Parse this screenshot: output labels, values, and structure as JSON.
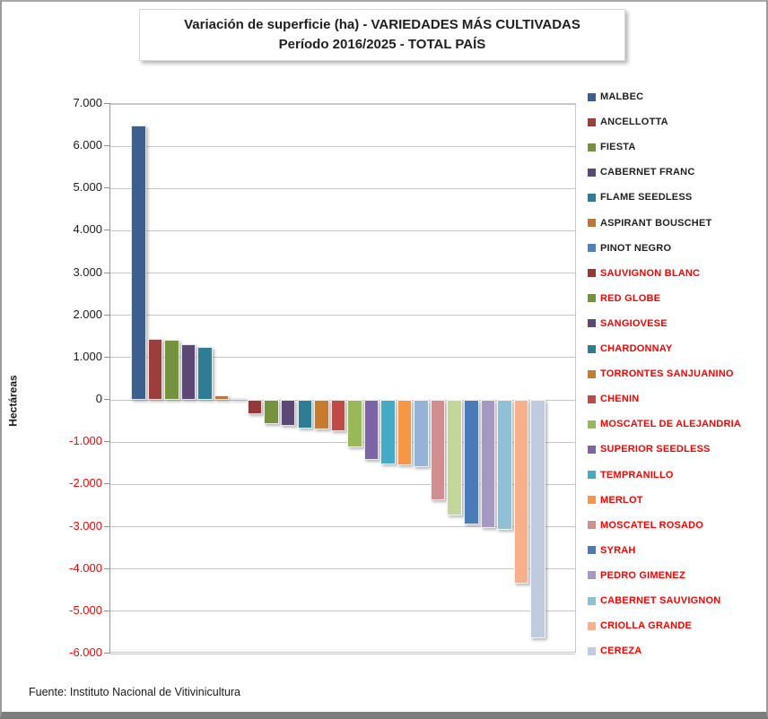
{
  "chart_data": {
    "type": "bar",
    "title_line1": "Variación de superficie (ha) - VARIEDADES MÁS CULTIVADAS",
    "title_line2": "Período 2016/2025 - TOTAL PAÍS",
    "ylabel": "Hectáreas",
    "ylim": [
      -6000,
      7000
    ],
    "ytick_step": 1000,
    "grid": true,
    "legend_position": "right",
    "positive_tick_color": "#1a1a1a",
    "negative_tick_color": "#ff0000",
    "yticks": [
      {
        "value": 7000,
        "label": "7.000"
      },
      {
        "value": 6000,
        "label": "6.000"
      },
      {
        "value": 5000,
        "label": "5.000"
      },
      {
        "value": 4000,
        "label": "4.000"
      },
      {
        "value": 3000,
        "label": "3.000"
      },
      {
        "value": 2000,
        "label": "2.000"
      },
      {
        "value": 1000,
        "label": "1.000"
      },
      {
        "value": 0,
        "label": "0"
      },
      {
        "value": -1000,
        "label": "-1.000"
      },
      {
        "value": -2000,
        "label": "-2.000"
      },
      {
        "value": -3000,
        "label": "-3.000"
      },
      {
        "value": -4000,
        "label": "-4.000"
      },
      {
        "value": -5000,
        "label": "-5.000"
      },
      {
        "value": -6000,
        "label": "-6.000"
      }
    ],
    "bars": [
      {
        "label": "MALBEC",
        "value": 6500,
        "color": "#3B608E",
        "in_legend": true,
        "legend_text_color": "#1f1f1f"
      },
      {
        "label": "ANCELLOTTA",
        "value": 1440,
        "color": "#9C3E3E",
        "in_legend": true,
        "legend_text_color": "#1f1f1f"
      },
      {
        "label": "FIESTA",
        "value": 1430,
        "color": "#75923E",
        "in_legend": true,
        "legend_text_color": "#1f1f1f"
      },
      {
        "label": "CABERNET FRANC",
        "value": 1310,
        "color": "#5B4875",
        "in_legend": true,
        "legend_text_color": "#1f1f1f"
      },
      {
        "label": "FLAME SEEDLESS",
        "value": 1250,
        "color": "#2E7D95",
        "in_legend": true,
        "legend_text_color": "#1f1f1f"
      },
      {
        "label": "ASPIRANT BOUSCHET",
        "value": 110,
        "color": "#BE7539",
        "in_legend": true,
        "legend_text_color": "#1f1f1f"
      },
      {
        "label": "PINOT NEGRO",
        "value": 40,
        "color": "#4F81BD",
        "in_legend": true,
        "legend_text_color": "#1f1f1f"
      },
      {
        "label": "SAUVIGNON BLANC",
        "value": -340,
        "color": "#963839",
        "in_legend": true,
        "legend_text_color": "#ff0000"
      },
      {
        "label": "RED GLOBE",
        "value": -570,
        "color": "#75923E",
        "in_legend": true,
        "legend_text_color": "#ff0000"
      },
      {
        "label": "SANGIOVESE",
        "value": -620,
        "color": "#5B4875",
        "in_legend": true,
        "legend_text_color": "#ff0000"
      },
      {
        "label": "CHARDONNAY",
        "value": -680,
        "color": "#2E7D95",
        "in_legend": true,
        "legend_text_color": "#ff0000"
      },
      {
        "label": "TORRONTES SANJUANINO",
        "value": -700,
        "color": "#C77B2F",
        "in_legend": true,
        "legend_text_color": "#ff0000"
      },
      {
        "label": "CHENIN",
        "value": -740,
        "color": "#BF4B49",
        "in_legend": true,
        "legend_text_color": "#ff0000"
      },
      {
        "label": "MOSCATEL DE ALEJANDRIA",
        "value": -1120,
        "color": "#99B857",
        "in_legend": true,
        "legend_text_color": "#ff0000"
      },
      {
        "label": "SUPERIOR SEEDLESS",
        "value": -1420,
        "color": "#7C64A5",
        "in_legend": true,
        "legend_text_color": "#ff0000"
      },
      {
        "label": "TEMPRANILLO",
        "value": -1520,
        "color": "#45AAC5",
        "in_legend": true,
        "legend_text_color": "#ff0000"
      },
      {
        "label": "MERLOT",
        "value": -1540,
        "color": "#F79646",
        "in_legend": true,
        "legend_text_color": "#ff0000"
      },
      {
        "label": "",
        "value": -1580,
        "color": "#95B3D7",
        "in_legend": false,
        "legend_text_color": null
      },
      {
        "label": "MOSCATEL ROSADO",
        "value": -2380,
        "color": "#D08F8E",
        "in_legend": true,
        "legend_text_color": "#ff0000"
      },
      {
        "label": "",
        "value": -2730,
        "color": "#C3D69B",
        "in_legend": false,
        "legend_text_color": null
      },
      {
        "label": "SYRAH",
        "value": -2940,
        "color": "#4A7AB8",
        "in_legend": true,
        "legend_text_color": "#ff0000"
      },
      {
        "label": "PEDRO GIMENEZ",
        "value": -3030,
        "color": "#A598C2",
        "in_legend": true,
        "legend_text_color": "#ff0000"
      },
      {
        "label": "CABERNET SAUVIGNON",
        "value": -3080,
        "color": "#8FC0D6",
        "in_legend": true,
        "legend_text_color": "#ff0000"
      },
      {
        "label": "CRIOLLA GRANDE",
        "value": -4350,
        "color": "#F8B08A",
        "in_legend": true,
        "legend_text_color": "#ff0000"
      },
      {
        "label": "CEREZA",
        "value": -5650,
        "color": "#C0CBE0",
        "in_legend": true,
        "legend_text_color": "#ff0000"
      }
    ],
    "source": "Fuente: Instituto Nacional de Vitivinicultura"
  }
}
